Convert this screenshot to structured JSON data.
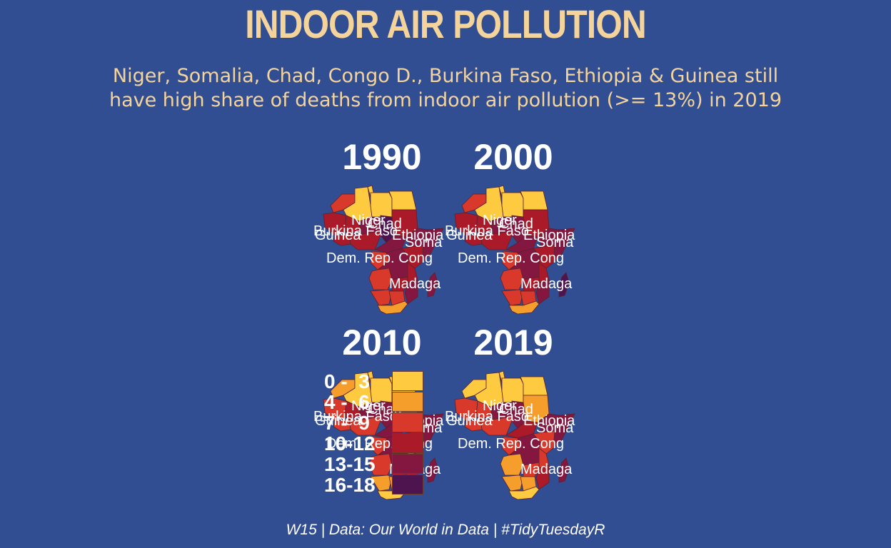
{
  "title": "INDOOR AIR POLLUTION",
  "subtitle": {
    "line1": "Niger, Somalia, Chad, Congo D., Burkina Faso, Ethiopia & Guinea still",
    "line2": "have high share of deaths from indoor air pollution (>= 13%) in 2019"
  },
  "colors": {
    "background": "#314e92",
    "title": "#f5d49c",
    "bin_0_3": "#fdca40",
    "bin_4_6": "#f69e2c",
    "bin_7_9": "#d8392b",
    "bin_10_12": "#aa1a28",
    "bin_13_15": "#84173f",
    "bin_16_18": "#4e1450"
  },
  "panels": [
    {
      "year": "1990",
      "labels": [
        "Niger",
        "Chad",
        "Burkina Faso",
        "Guinea",
        "Ethiopia",
        "Soma",
        "Dem. Rep. Cong",
        "Madaga"
      ]
    },
    {
      "year": "2000",
      "labels": [
        "Niger",
        "Chad",
        "Burkina Faso",
        "Guinea",
        "Ethiopia",
        "Soma",
        "Dem. Rep. Cong",
        "Madaga"
      ]
    },
    {
      "year": "2010",
      "labels": [
        "Niger",
        "Chad",
        "Burkina Faso",
        "Guinea",
        "Ethiopia",
        "Soma",
        "Dem. Rep. Cong",
        "Madaga"
      ]
    },
    {
      "year": "2019",
      "labels": [
        "Niger",
        "Chad",
        "Burkina Faso",
        "Guinea",
        "Ethiopia",
        "Soma",
        "Dem. Rep. Cong",
        "Madaga"
      ]
    }
  ],
  "legend": [
    {
      "label": "0 -  3",
      "color": "#fdca40"
    },
    {
      "label": "4 -  6",
      "color": "#f69e2c"
    },
    {
      "label": "7 -  9",
      "color": "#d8392b"
    },
    {
      "label": "10-12",
      "color": "#aa1a28"
    },
    {
      "label": "13-15",
      "color": "#84173f"
    },
    {
      "label": "16-18",
      "color": "#4e1450"
    }
  ],
  "caption": "W15 | Data: Our World in Data | #TidyTuesdayR"
}
